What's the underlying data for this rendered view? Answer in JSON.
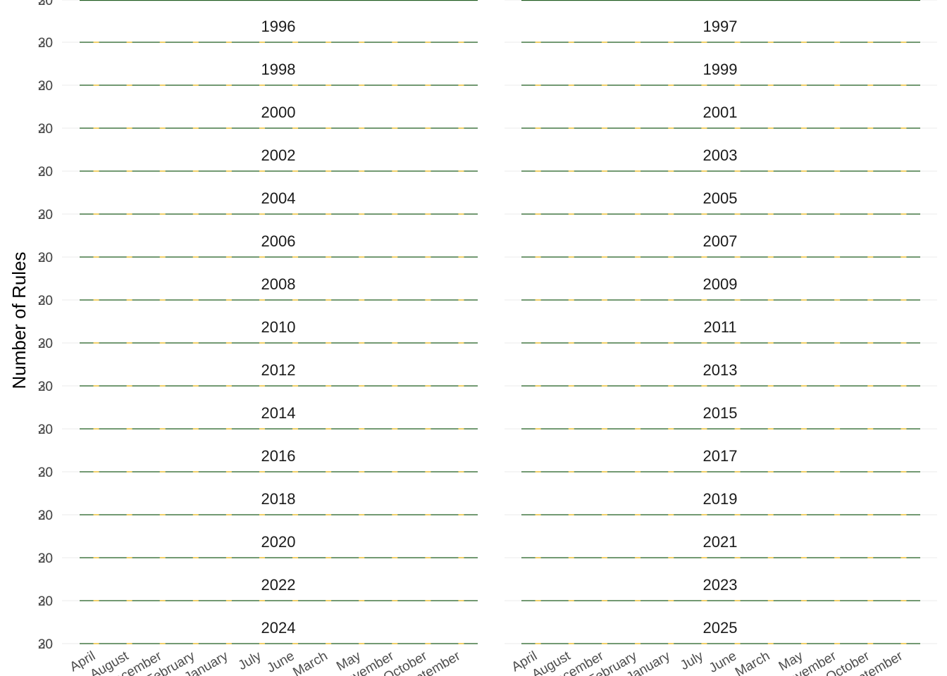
{
  "chart_data": {
    "type": "line",
    "ylabel": "Number of Rules",
    "xlabel": "",
    "x_tick_labels": [
      "April",
      "August",
      "December",
      "February",
      "January",
      "July",
      "June",
      "March",
      "May",
      "November",
      "October",
      "September"
    ],
    "y_tick_labels": [
      "20",
      "30"
    ],
    "panels": [
      {
        "year": "1996",
        "values": [
          0,
          0,
          0,
          0,
          0,
          0,
          0,
          0,
          0,
          0,
          0,
          0
        ]
      },
      {
        "year": "1997",
        "values": [
          0,
          0,
          0,
          0,
          0,
          0,
          0,
          0,
          0,
          0,
          0,
          0
        ]
      },
      {
        "year": "1998",
        "values": [
          0,
          0,
          0,
          0,
          0,
          0,
          0,
          0,
          0,
          0,
          0,
          0
        ]
      },
      {
        "year": "1999",
        "values": [
          0,
          0,
          0,
          0,
          0,
          0,
          0,
          0,
          0,
          0,
          0,
          0
        ]
      },
      {
        "year": "2000",
        "values": [
          0,
          0,
          0,
          0,
          0,
          0,
          0,
          0,
          0,
          0,
          0,
          0
        ]
      },
      {
        "year": "2001",
        "values": [
          0,
          0,
          0,
          0,
          0,
          0,
          0,
          0,
          0,
          0,
          0,
          0
        ]
      },
      {
        "year": "2002",
        "values": [
          0,
          0,
          0,
          0,
          0,
          0,
          0,
          0,
          0,
          0,
          0,
          0
        ]
      },
      {
        "year": "2003",
        "values": [
          0,
          0,
          0,
          0,
          0,
          0,
          0,
          0,
          0,
          0,
          0,
          0
        ]
      },
      {
        "year": "2004",
        "values": [
          0,
          0,
          0,
          0,
          0,
          0,
          0,
          0,
          0,
          0,
          0,
          0
        ]
      },
      {
        "year": "2005",
        "values": [
          0,
          0,
          0,
          0,
          0,
          0,
          0,
          0,
          0,
          0,
          0,
          0
        ]
      },
      {
        "year": "2006",
        "values": [
          0,
          0,
          0,
          0,
          0,
          0,
          0,
          0,
          0,
          0,
          0,
          0
        ]
      },
      {
        "year": "2007",
        "values": [
          0,
          0,
          0,
          0,
          0,
          0,
          0,
          0,
          0,
          0,
          0,
          0
        ]
      },
      {
        "year": "2008",
        "values": [
          0,
          0,
          0,
          0,
          0,
          0,
          0,
          0,
          0,
          0,
          0,
          0
        ]
      },
      {
        "year": "2009",
        "values": [
          0,
          0,
          0,
          0,
          0,
          0,
          0,
          0,
          0,
          0,
          0,
          0
        ]
      },
      {
        "year": "2010",
        "values": [
          0,
          0,
          0,
          0,
          0,
          0,
          0,
          0,
          0,
          0,
          0,
          0
        ]
      },
      {
        "year": "2011",
        "values": [
          0,
          0,
          0,
          0,
          0,
          0,
          0,
          0,
          0,
          0,
          0,
          0
        ]
      },
      {
        "year": "2012",
        "values": [
          0,
          0,
          0,
          0,
          0,
          0,
          0,
          0,
          0,
          0,
          0,
          0
        ]
      },
      {
        "year": "2013",
        "values": [
          0,
          0,
          0,
          0,
          0,
          0,
          0,
          0,
          0,
          0,
          0,
          0
        ]
      },
      {
        "year": "2014",
        "values": [
          0,
          0,
          0,
          0,
          0,
          0,
          0,
          0,
          0,
          0,
          0,
          0
        ]
      },
      {
        "year": "2015",
        "values": [
          0,
          0,
          0,
          0,
          0,
          0,
          0,
          0,
          0,
          0,
          0,
          0
        ]
      },
      {
        "year": "2016",
        "values": [
          0,
          0,
          0,
          0,
          0,
          0,
          0,
          0,
          0,
          0,
          0,
          0
        ]
      },
      {
        "year": "2017",
        "values": [
          0,
          0,
          0,
          0,
          0,
          0,
          0,
          0,
          0,
          0,
          0,
          0
        ]
      },
      {
        "year": "2018",
        "values": [
          0,
          0,
          0,
          0,
          0,
          0,
          0,
          0,
          0,
          0,
          0,
          0
        ]
      },
      {
        "year": "2019",
        "values": [
          0,
          0,
          0,
          0,
          0,
          0,
          0,
          0,
          0,
          0,
          0,
          0
        ]
      },
      {
        "year": "2020",
        "values": [
          0,
          0,
          0,
          0,
          0,
          0,
          0,
          0,
          0,
          0,
          0,
          0
        ]
      },
      {
        "year": "2021",
        "values": [
          0,
          0,
          0,
          0,
          0,
          0,
          0,
          0,
          0,
          0,
          0,
          0
        ]
      },
      {
        "year": "2022",
        "values": [
          0,
          0,
          0,
          0,
          0,
          0,
          0,
          0,
          0,
          0,
          0,
          0
        ]
      },
      {
        "year": "2023",
        "values": [
          0,
          0,
          0,
          0,
          0,
          0,
          0,
          0,
          0,
          0,
          0,
          0
        ]
      },
      {
        "year": "2024",
        "values": [
          0,
          0,
          0,
          0,
          0,
          0,
          0,
          0,
          0,
          0,
          0,
          0
        ]
      },
      {
        "year": "2025",
        "values": [
          0,
          0,
          0,
          0,
          0,
          0,
          0,
          0,
          0,
          0,
          0,
          0
        ]
      }
    ],
    "grid": true,
    "colors": {
      "line": "#1f5c1f",
      "point": "#f2d16b",
      "grid": "#ebebeb"
    }
  }
}
